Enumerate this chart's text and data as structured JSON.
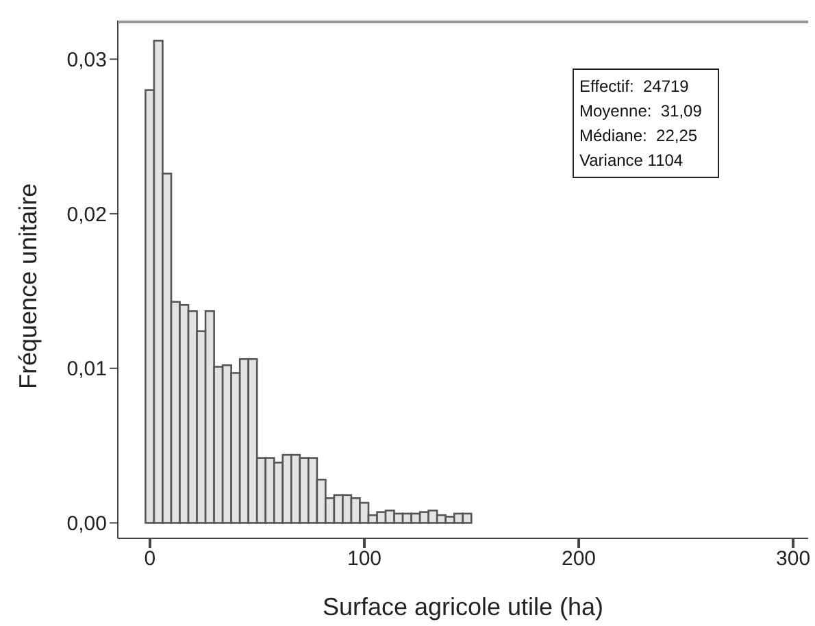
{
  "chart_data": {
    "type": "histogram",
    "xlabel": "Surface agricole utile (ha)",
    "ylabel": "Fréquence unitaire",
    "bins": [
      -2,
      2,
      6,
      10,
      14,
      18,
      22,
      26,
      30,
      34,
      38,
      42,
      46,
      50,
      54,
      58,
      62,
      66,
      70,
      74,
      78,
      82,
      86,
      90,
      94,
      98,
      102,
      106,
      110,
      114,
      118,
      122,
      126,
      130,
      134,
      138,
      142,
      146,
      150,
      154,
      158,
      162,
      166,
      170,
      174,
      178,
      182,
      186,
      190,
      194,
      198,
      202,
      206,
      210,
      214,
      218,
      222,
      226,
      230,
      234,
      238,
      242,
      246,
      250,
      254,
      258,
      262,
      266,
      270,
      274,
      278,
      282,
      286,
      290,
      294,
      298,
      302
    ],
    "values": [
      0.028,
      0.0312,
      0.0226,
      0.0143,
      0.0141,
      0.0137,
      0.0124,
      0.0137,
      0.0101,
      0.0102,
      0.0097,
      0.0106,
      0.0106,
      0.0042,
      0.0042,
      0.0039,
      0.0044,
      0.0044,
      0.0042,
      0.0042,
      0.0028,
      0.0016,
      0.0018,
      0.0018,
      0.0016,
      0.0013,
      0.0005,
      0.0007,
      0.0008,
      0.0006,
      0.0006,
      0.0006,
      0.0007,
      0.0008,
      0.0005,
      0.0004,
      0.0006,
      0.0006,
      0,
      0,
      0,
      0,
      0,
      0,
      0,
      0,
      0,
      0,
      0,
      0,
      0,
      0,
      0,
      0,
      0,
      0,
      0,
      0,
      0,
      0,
      0,
      0,
      0,
      0,
      0,
      0,
      0,
      0,
      0,
      0,
      0,
      0,
      0,
      0,
      0,
      0
    ],
    "color": "#e3e3e3",
    "xlim": [
      -15,
      307
    ],
    "xticks": [
      0,
      100,
      200,
      300
    ],
    "ylim": [
      -0.001,
      0.0325
    ],
    "yticks": [
      {
        "value": 0,
        "label": "0,00"
      },
      {
        "value": 0.01,
        "label": "0,01"
      },
      {
        "value": 0.02,
        "label": "0,02"
      },
      {
        "value": 0.03,
        "label": "0,03"
      }
    ],
    "grid": false,
    "annotations": [
      "Effectif:  24719",
      "Moyenne:  31,09",
      "Médiane:  22,25",
      "Variance 1104"
    ]
  }
}
